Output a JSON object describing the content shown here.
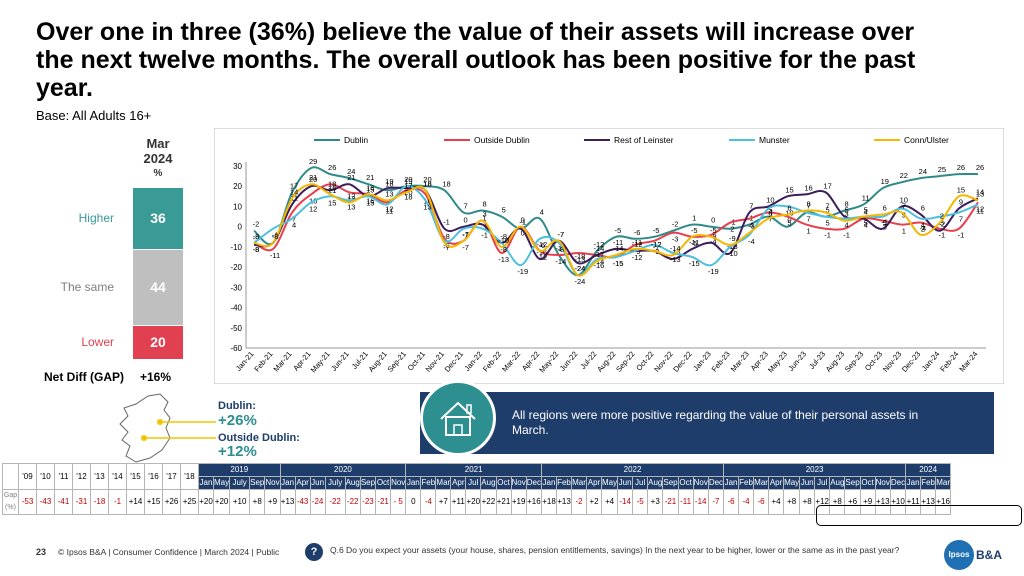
{
  "header": {
    "title": "Over one in three (36%) believe the value of their assets will increase over the next twelve months. The overall outlook has been positive for the past year.",
    "base": "Base: All Adults 16+"
  },
  "stack": {
    "head_month": "Mar",
    "head_year": "2024",
    "head_unit": "%",
    "segments": [
      {
        "label": "Higher",
        "value": "36",
        "color": "#3a9a96",
        "label_color": "#3a9a96"
      },
      {
        "label": "The same",
        "value": "44",
        "color": "#bfbfbf",
        "label_color": "#7f7f7f"
      },
      {
        "label": "Lower",
        "value": "20",
        "color": "#e0404f",
        "label_color": "#e0404f"
      }
    ],
    "gap_label": "Net Diff (GAP)",
    "gap_value": "+16%"
  },
  "regions": {
    "dublin_name": "Dublin:",
    "dublin_val": "+26%",
    "outside_name": "Outside Dublin:",
    "outside_val": "+12%"
  },
  "callout": {
    "text": "All regions were more positive regarding the value of their personal assets in March.",
    "icon": "house-icon"
  },
  "chart_data": {
    "type": "line",
    "categories": [
      "Jan-21",
      "Feb-21",
      "Mar-21",
      "Apr-21",
      "May-21",
      "Jun-21",
      "Jul-21",
      "Aug-21",
      "Sep-21",
      "Oct-21",
      "Nov-21",
      "Dec-21",
      "Jan-22",
      "Feb-22",
      "Mar-22",
      "Apr-22",
      "May-22",
      "Jun-22",
      "Jul-22",
      "Aug-22",
      "Sep-22",
      "Oct-22",
      "Nov-22",
      "Dec-22",
      "Jan-23",
      "Feb-23",
      "Mar-23",
      "Apr-23",
      "May-23",
      "Jun-23",
      "Jul-23",
      "Aug-23",
      "Sep-23",
      "Oct-23",
      "Nov-23",
      "Dec-23",
      "Jan-24",
      "Feb-24",
      "Mar-24"
    ],
    "ylim": [
      -60,
      30
    ],
    "yticks": [
      30,
      20,
      10,
      0,
      -10,
      -20,
      -30,
      -40,
      -50,
      -60
    ],
    "series": [
      {
        "name": "Dublin",
        "color": "#2e8b89",
        "values": [
          -2,
          -8,
          17,
          29,
          26,
          24,
          21,
          18,
          20,
          20,
          18,
          7,
          8,
          5,
          -1,
          4,
          -14,
          -24,
          -12,
          -5,
          -6,
          -5,
          -2,
          1,
          0,
          -1,
          1,
          5,
          0,
          7,
          5,
          8,
          11,
          19,
          22,
          24,
          25,
          26,
          26
        ]
      },
      {
        "name": "Outside Dublin",
        "color": "#e83e4c",
        "values": [
          -8,
          -11,
          7,
          16,
          21,
          17,
          16,
          12,
          18,
          16,
          -6,
          -7,
          3,
          -13,
          0,
          -12,
          -14,
          -13,
          -14,
          -15,
          -9,
          -7,
          -3,
          -5,
          -4,
          2,
          4,
          7,
          5,
          1,
          -1,
          -1,
          4,
          3,
          1,
          2,
          -1,
          -1,
          12
        ]
      },
      {
        "name": "Rest of Leinster",
        "color": "#3d1d5b",
        "values": [
          -9,
          -8,
          11,
          20,
          18,
          21,
          15,
          19,
          19,
          18,
          -1,
          0,
          1,
          -8,
          -1,
          -16,
          -7,
          -18,
          -14,
          -11,
          -12,
          -12,
          -16,
          -11,
          -8,
          -13,
          7,
          10,
          15,
          16,
          17,
          5,
          4,
          -1,
          10,
          6,
          -2,
          9,
          14
        ]
      },
      {
        "name": "Munster",
        "color": "#4fbfe0",
        "values": [
          -8,
          -1,
          4,
          12,
          15,
          13,
          15,
          11,
          20,
          13,
          -7,
          -1,
          -1,
          -8,
          -19,
          -6,
          -8,
          -24,
          -16,
          -15,
          -12,
          -9,
          -13,
          -15,
          -19,
          -10,
          -4,
          9,
          10,
          7,
          5,
          4,
          5,
          5,
          9,
          4,
          5,
          7,
          11
        ]
      },
      {
        "name": "Conn/Ulster",
        "color": "#f5b800",
        "values": [
          -8,
          -8,
          14,
          21,
          16,
          12,
          16,
          13,
          17,
          18,
          -8,
          -7,
          3,
          -10,
          0,
          -12,
          -7,
          -24,
          -17,
          -14,
          -11,
          -12,
          -14,
          -5,
          -5,
          -9,
          -3,
          4,
          6,
          8,
          7,
          3,
          5,
          6,
          7,
          -4,
          2,
          15,
          13
        ]
      }
    ]
  },
  "gap_table": {
    "row_label": "Gap (%)",
    "early_years": [
      "'09",
      "'10",
      "'11",
      "'12",
      "'13",
      "'14",
      "'15",
      "'16",
      "'17",
      "'18"
    ],
    "early_vals": [
      "-53",
      "-43",
      "-41",
      "-31",
      "-18",
      "-1",
      "+14",
      "+15",
      "+26",
      "+25"
    ],
    "years": [
      {
        "year": "2019",
        "months": [
          "Jan",
          "May",
          "July",
          "Sep",
          "Nov"
        ],
        "vals": [
          "+20",
          "+20",
          "+10",
          "+8",
          "+9"
        ]
      },
      {
        "year": "2020",
        "months": [
          "Jan",
          "Apr",
          "Jun",
          "July",
          "Aug",
          "Sep",
          "Oct",
          "Nov"
        ],
        "vals": [
          "+13",
          "-43",
          "-24",
          "-22",
          "-22",
          "-23",
          "-21",
          "- 5"
        ]
      },
      {
        "year": "2021",
        "months": [
          "Jan",
          "Feb",
          "Mar",
          "Apr",
          "Jul",
          "Aug",
          "Oct",
          "Nov",
          "Dec"
        ],
        "vals": [
          "0",
          "-4",
          "+7",
          "+11",
          "+20",
          "+22",
          "+21",
          "+19",
          "+16"
        ]
      },
      {
        "year": "2022",
        "months": [
          "Jan",
          "Feb",
          "Mar",
          "Apr",
          "May",
          "Jun",
          "Jul",
          "Aug",
          "Sep",
          "Oct",
          "Nov",
          "Dec"
        ],
        "vals": [
          "+18",
          "+13",
          "-2",
          "+2",
          "+4",
          "-14",
          "-5",
          "+3",
          "-21",
          "-11",
          "-14",
          "-7"
        ]
      },
      {
        "year": "2023",
        "months": [
          "Jan",
          "Feb",
          "Mar",
          "Apr",
          "May",
          "Jun",
          "Jul",
          "Aug",
          "Sep",
          "Oct",
          "Nov",
          "Dec"
        ],
        "vals": [
          "-6",
          "-4",
          "-6",
          "+4",
          "+8",
          "+8",
          "+12",
          "+8",
          "+6",
          "+9",
          "+13",
          "+10"
        ]
      },
      {
        "year": "2024",
        "months": [
          "Jan",
          "Feb",
          "Mar"
        ],
        "vals": [
          "+11",
          "+13",
          "+16"
        ]
      }
    ]
  },
  "footer": {
    "page": "23",
    "copyright": "© Ipsos B&A | Consumer Confidence | March 2024 | Public",
    "question": "Q.6 Do you expect your assets (your house, shares, pension entitlements, savings) In the next year to be higher, lower or the same as in the past year?",
    "logo": "Ipsos",
    "brand": "B&A"
  }
}
